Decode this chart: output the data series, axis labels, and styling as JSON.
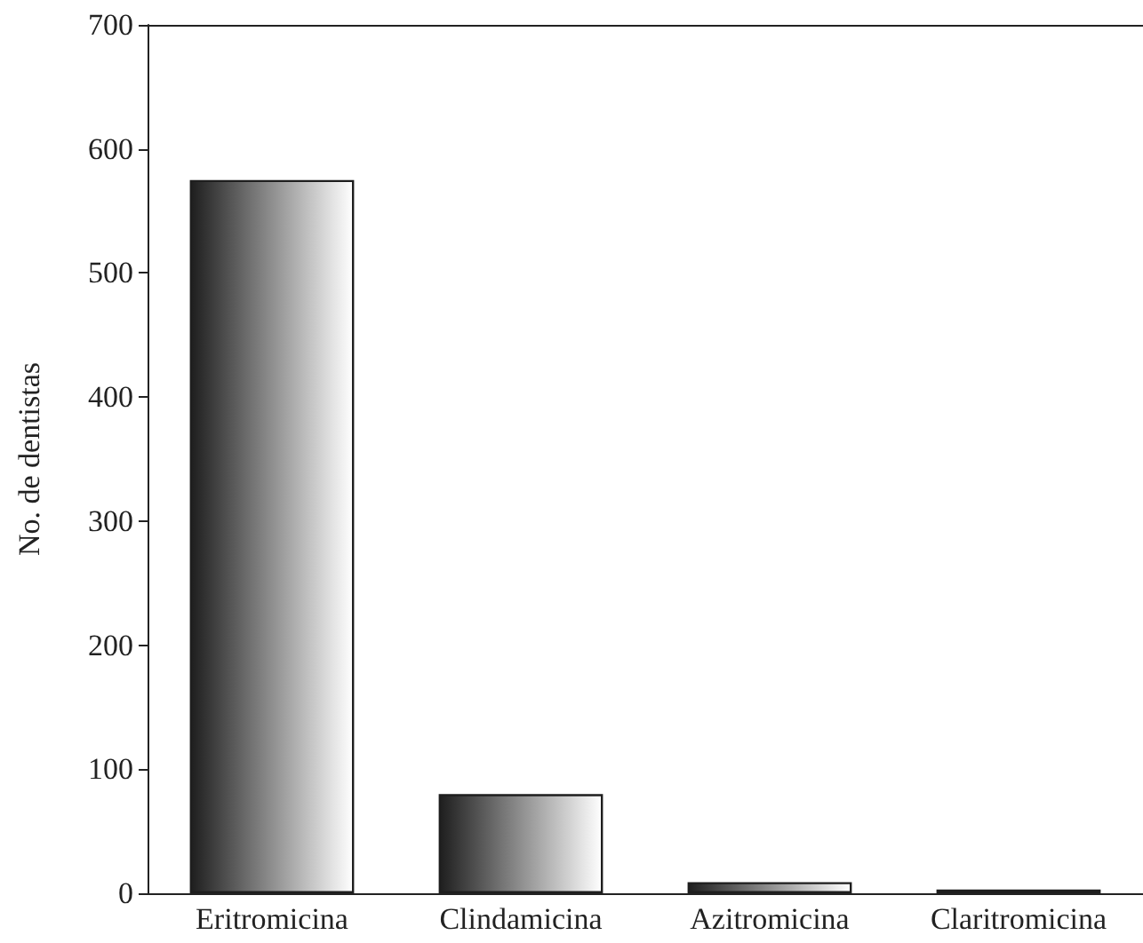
{
  "chart_data": {
    "type": "bar",
    "ylabel": "No. de dentistas",
    "categories": [
      "Eritromicina",
      "Clindamicina",
      "Azitromicina",
      "Claritromicina"
    ],
    "values": [
      575,
      80,
      9,
      3
    ],
    "color": "#1e1e1e",
    "ylim": [
      0,
      700
    ],
    "yticks": [
      0,
      100,
      200,
      300,
      400,
      500,
      600,
      700
    ],
    "grid": false
  }
}
